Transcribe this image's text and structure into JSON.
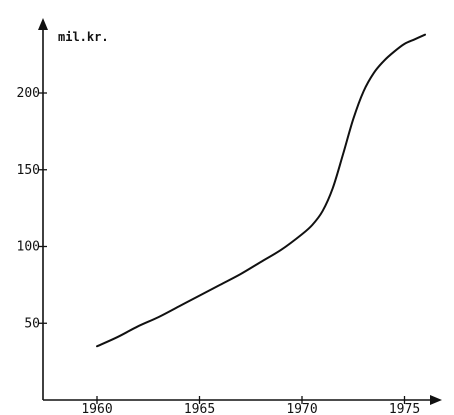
{
  "chart_data": {
    "type": "line",
    "title": "",
    "xlabel": "",
    "ylabel": "",
    "unit_label": "mil.kr.",
    "x_ticks": [
      1960,
      1965,
      1970,
      1975
    ],
    "x_tick_labels": [
      "1960",
      "1965",
      "1970",
      "1975"
    ],
    "y_ticks": [
      50,
      100,
      150,
      200
    ],
    "y_tick_labels": [
      "50",
      "100",
      "150",
      "200"
    ],
    "xlim": [
      1958.3,
      1976.6
    ],
    "ylim": [
      0,
      235
    ],
    "grid": false,
    "legend": "none",
    "line_color": "#111111",
    "series": [
      {
        "x": [
          1960,
          1961,
          1962,
          1963,
          1964,
          1965,
          1966,
          1967,
          1968,
          1969,
          1970,
          1970.5,
          1971,
          1971.5,
          1972,
          1972.5,
          1973,
          1973.5,
          1974,
          1974.5,
          1975,
          1975.5,
          1976
        ],
        "values": [
          35,
          41,
          48,
          54,
          61,
          68,
          75,
          82,
          90,
          98,
          108,
          114,
          123,
          138,
          160,
          183,
          201,
          213,
          221,
          227,
          232,
          235,
          238
        ]
      }
    ]
  }
}
